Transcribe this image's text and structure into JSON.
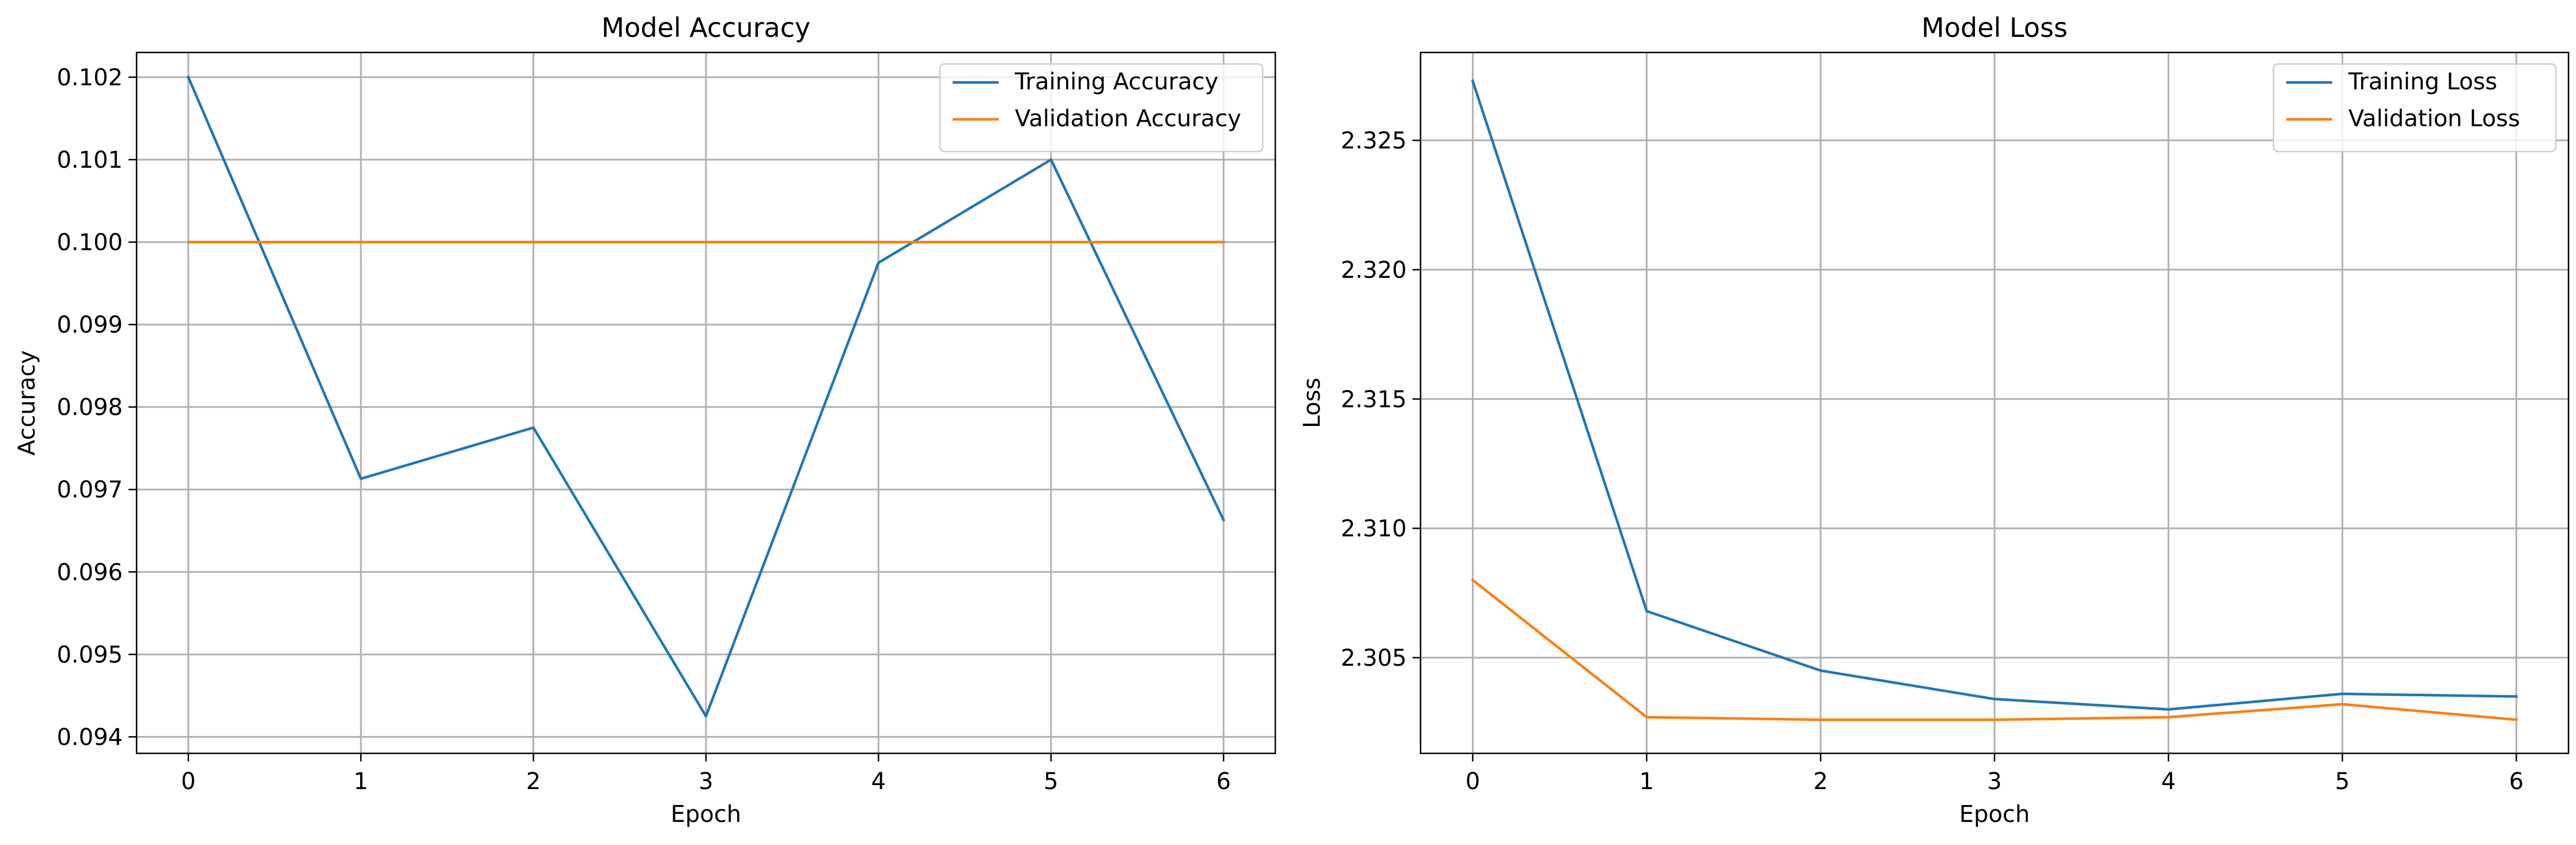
{
  "colors": {
    "training": "#1f77b4",
    "validation": "#ff7f0e"
  },
  "chart_data": [
    {
      "type": "line",
      "title": "Model Accuracy",
      "xlabel": "Epoch",
      "ylabel": "Accuracy",
      "x": [
        0,
        1,
        2,
        3,
        4,
        5,
        6
      ],
      "xlim": [
        -0.3,
        6.3
      ],
      "ylim": [
        0.0938,
        0.1023
      ],
      "xticks": [
        "0",
        "1",
        "2",
        "3",
        "4",
        "5",
        "6"
      ],
      "yticks": [
        "0.094",
        "0.095",
        "0.096",
        "0.097",
        "0.098",
        "0.099",
        "0.100",
        "0.101",
        "0.102"
      ],
      "grid": true,
      "legend_position": "top-right",
      "series": [
        {
          "name": "Training Accuracy",
          "color": "#1f77b4",
          "values": [
            0.102,
            0.09713,
            0.09775,
            0.09425,
            0.09975,
            0.101,
            0.09663
          ]
        },
        {
          "name": "Validation Accuracy",
          "color": "#ff7f0e",
          "values": [
            0.1,
            0.1,
            0.1,
            0.1,
            0.1,
            0.1,
            0.1
          ]
        }
      ]
    },
    {
      "type": "line",
      "title": "Model Loss",
      "xlabel": "Epoch",
      "ylabel": "Loss",
      "x": [
        0,
        1,
        2,
        3,
        4,
        5,
        6
      ],
      "xlim": [
        -0.3,
        6.3
      ],
      "ylim": [
        2.3013,
        2.3284
      ],
      "xticks": [
        "0",
        "1",
        "2",
        "3",
        "4",
        "5",
        "6"
      ],
      "yticks": [
        "2.305",
        "2.310",
        "2.315",
        "2.320",
        "2.325"
      ],
      "grid": true,
      "legend_position": "top-right",
      "series": [
        {
          "name": "Training Loss",
          "color": "#1f77b4",
          "values": [
            2.3273,
            2.3068,
            2.3045,
            2.3034,
            2.303,
            2.3036,
            2.3035
          ]
        },
        {
          "name": "Validation Loss",
          "color": "#ff7f0e",
          "values": [
            2.308,
            2.3027,
            2.3026,
            2.3026,
            2.3027,
            2.3032,
            2.3026
          ]
        }
      ]
    }
  ]
}
